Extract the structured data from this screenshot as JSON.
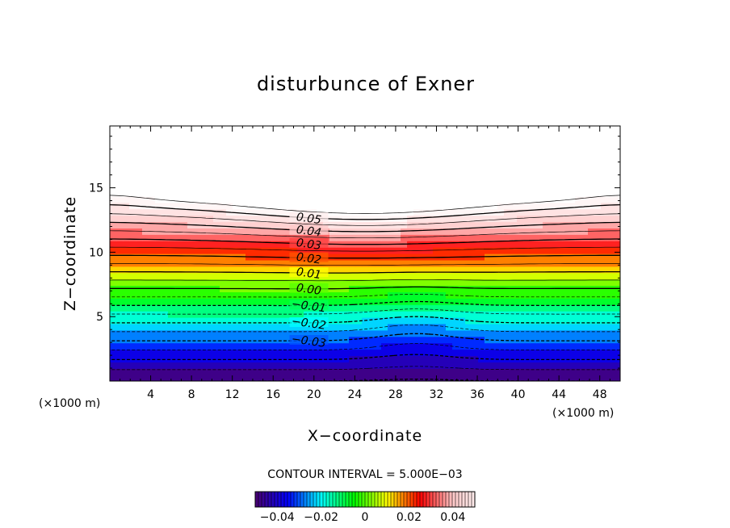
{
  "chart_data": {
    "type": "contour",
    "title": "disturbunce of Exner",
    "xlabel": "X−coordinate",
    "ylabel": "Z−coordinate",
    "x_unit_label": "(×1000 m)",
    "y_unit_label": "(×1000 m)",
    "xlim": [
      0,
      50
    ],
    "ylim": [
      0,
      19.8
    ],
    "x_ticks": [
      4,
      8,
      12,
      16,
      20,
      24,
      28,
      32,
      36,
      40,
      44,
      48
    ],
    "x_tick_labels": [
      "4",
      "8",
      "12",
      "16",
      "20",
      "24",
      "28",
      "32",
      "36",
      "40",
      "44",
      "48"
    ],
    "y_ticks": [
      5,
      10,
      15
    ],
    "y_tick_labels": [
      "5",
      "10",
      "15"
    ],
    "contour_interval_text": "CONTOUR INTERVAL = 5.000E−03",
    "contour_interval": 0.005,
    "contour_labels": [
      "0.05",
      "0.04",
      "0.03",
      "0.02",
      "0.01",
      "0.00",
      "−0.01",
      "−0.02",
      "−0.03"
    ],
    "negative_contours": "dashed",
    "value_range": [
      -0.05,
      0.055
    ],
    "colorbar": {
      "range": [
        -0.05,
        0.05
      ],
      "tick_values": [
        -0.04,
        -0.02,
        0,
        0.02,
        0.04
      ],
      "tick_labels": [
        "−0.04",
        "−0.02",
        "0",
        "0.02",
        "0.04"
      ]
    },
    "colormap": [
      "#4a0070",
      "#0000ff",
      "#00ffff",
      "#00ff00",
      "#ffff00",
      "#ff0000",
      "#ffc8c8",
      "#ffffff"
    ]
  }
}
